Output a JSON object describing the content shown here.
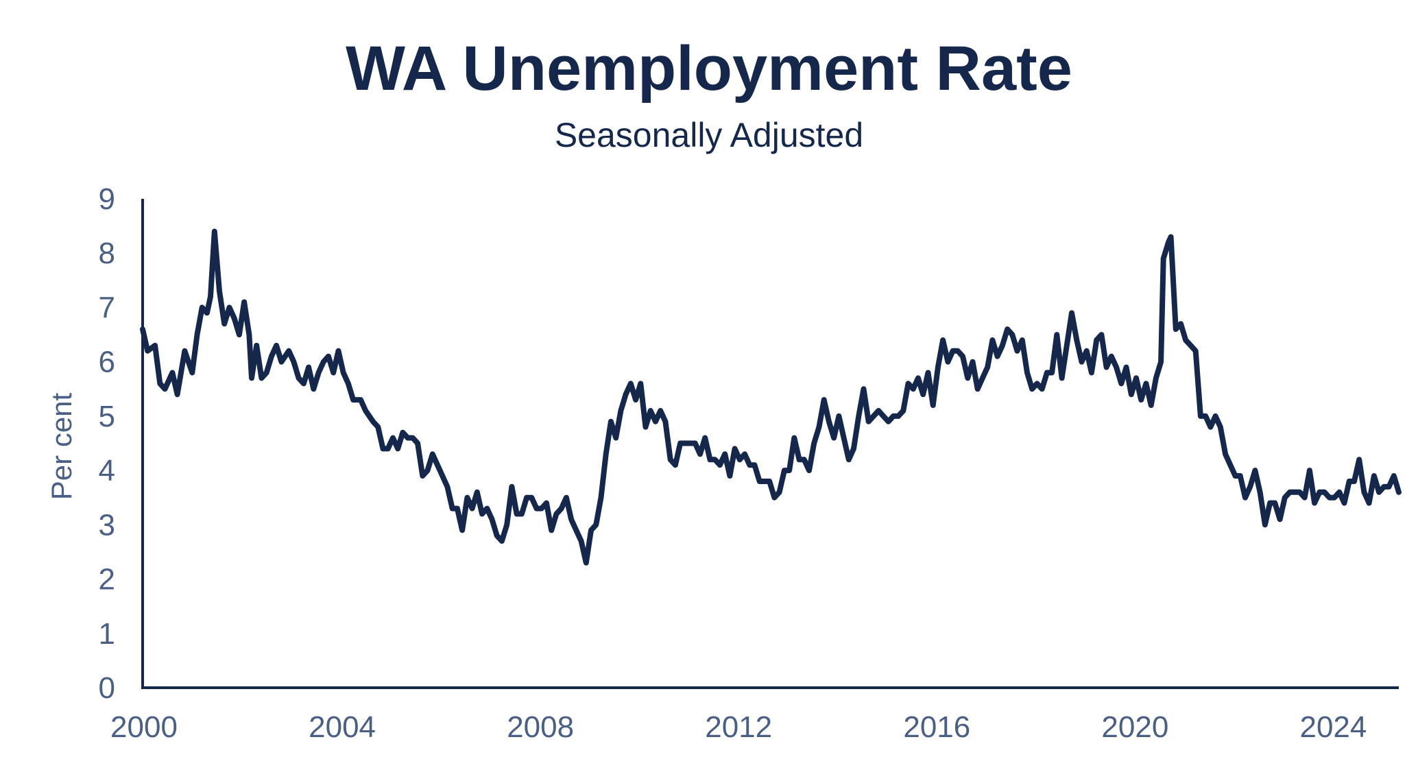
{
  "colors": {
    "line": "#15284b",
    "axis": "#15284b",
    "tick_text": "#4a5f84",
    "title": "#15284b"
  },
  "chart_data": {
    "type": "line",
    "title": "WA Unemployment Rate",
    "subtitle": "Seasonally Adjusted",
    "xlabel": "",
    "ylabel": "Per cent",
    "xlim": [
      2000,
      2025.35
    ],
    "ylim": [
      0,
      9
    ],
    "x_ticks": [
      "2000",
      "2004",
      "2008",
      "2012",
      "2016",
      "2020",
      "2024"
    ],
    "y_ticks": [
      "0",
      "1",
      "2",
      "3",
      "4",
      "5",
      "6",
      "7",
      "8",
      "9"
    ],
    "grid": false,
    "legend": "none",
    "series": [
      {
        "points": [
          [
            2000.0,
            6.6
          ],
          [
            2000.1,
            6.2
          ],
          [
            2000.25,
            6.3
          ],
          [
            2000.35,
            5.6
          ],
          [
            2000.45,
            5.5
          ],
          [
            2000.6,
            5.8
          ],
          [
            2000.7,
            5.4
          ],
          [
            2000.85,
            6.2
          ],
          [
            2001.0,
            5.8
          ],
          [
            2001.1,
            6.5
          ],
          [
            2001.2,
            7.0
          ],
          [
            2001.3,
            6.9
          ],
          [
            2001.37,
            7.2
          ],
          [
            2001.45,
            8.4
          ],
          [
            2001.55,
            7.3
          ],
          [
            2001.65,
            6.7
          ],
          [
            2001.75,
            7.0
          ],
          [
            2001.85,
            6.8
          ],
          [
            2001.95,
            6.5
          ],
          [
            2002.05,
            7.1
          ],
          [
            2002.15,
            6.5
          ],
          [
            2002.2,
            5.7
          ],
          [
            2002.3,
            6.3
          ],
          [
            2002.4,
            5.7
          ],
          [
            2002.5,
            5.8
          ],
          [
            2002.6,
            6.1
          ],
          [
            2002.7,
            6.3
          ],
          [
            2002.8,
            6.0
          ],
          [
            2002.95,
            6.2
          ],
          [
            2003.05,
            6.0
          ],
          [
            2003.15,
            5.7
          ],
          [
            2003.25,
            5.6
          ],
          [
            2003.35,
            5.9
          ],
          [
            2003.45,
            5.5
          ],
          [
            2003.55,
            5.8
          ],
          [
            2003.65,
            6.0
          ],
          [
            2003.75,
            6.1
          ],
          [
            2003.85,
            5.8
          ],
          [
            2003.95,
            6.2
          ],
          [
            2004.05,
            5.8
          ],
          [
            2004.15,
            5.6
          ],
          [
            2004.25,
            5.3
          ],
          [
            2004.4,
            5.3
          ],
          [
            2004.5,
            5.1
          ],
          [
            2004.65,
            4.9
          ],
          [
            2004.75,
            4.8
          ],
          [
            2004.85,
            4.4
          ],
          [
            2004.95,
            4.4
          ],
          [
            2005.05,
            4.6
          ],
          [
            2005.15,
            4.4
          ],
          [
            2005.25,
            4.7
          ],
          [
            2005.35,
            4.6
          ],
          [
            2005.45,
            4.6
          ],
          [
            2005.55,
            4.5
          ],
          [
            2005.65,
            3.9
          ],
          [
            2005.75,
            4.0
          ],
          [
            2005.85,
            4.3
          ],
          [
            2005.95,
            4.1
          ],
          [
            2006.05,
            3.9
          ],
          [
            2006.15,
            3.7
          ],
          [
            2006.25,
            3.3
          ],
          [
            2006.35,
            3.3
          ],
          [
            2006.45,
            2.9
          ],
          [
            2006.55,
            3.5
          ],
          [
            2006.65,
            3.3
          ],
          [
            2006.75,
            3.6
          ],
          [
            2006.85,
            3.2
          ],
          [
            2006.95,
            3.3
          ],
          [
            2007.05,
            3.1
          ],
          [
            2007.15,
            2.8
          ],
          [
            2007.25,
            2.7
          ],
          [
            2007.35,
            3.0
          ],
          [
            2007.45,
            3.7
          ],
          [
            2007.55,
            3.2
          ],
          [
            2007.65,
            3.2
          ],
          [
            2007.75,
            3.5
          ],
          [
            2007.85,
            3.5
          ],
          [
            2007.95,
            3.3
          ],
          [
            2008.05,
            3.3
          ],
          [
            2008.15,
            3.4
          ],
          [
            2008.25,
            2.9
          ],
          [
            2008.35,
            3.2
          ],
          [
            2008.45,
            3.3
          ],
          [
            2008.55,
            3.5
          ],
          [
            2008.65,
            3.1
          ],
          [
            2008.75,
            2.9
          ],
          [
            2008.85,
            2.7
          ],
          [
            2008.95,
            2.3
          ],
          [
            2009.05,
            2.9
          ],
          [
            2009.15,
            3.0
          ],
          [
            2009.25,
            3.5
          ],
          [
            2009.35,
            4.3
          ],
          [
            2009.45,
            4.9
          ],
          [
            2009.55,
            4.6
          ],
          [
            2009.65,
            5.1
          ],
          [
            2009.75,
            5.4
          ],
          [
            2009.85,
            5.6
          ],
          [
            2009.95,
            5.3
          ],
          [
            2010.05,
            5.6
          ],
          [
            2010.15,
            4.8
          ],
          [
            2010.25,
            5.1
          ],
          [
            2010.35,
            4.9
          ],
          [
            2010.45,
            5.1
          ],
          [
            2010.55,
            4.9
          ],
          [
            2010.65,
            4.2
          ],
          [
            2010.75,
            4.1
          ],
          [
            2010.85,
            4.5
          ],
          [
            2010.95,
            4.5
          ],
          [
            2011.05,
            4.5
          ],
          [
            2011.15,
            4.5
          ],
          [
            2011.25,
            4.3
          ],
          [
            2011.35,
            4.6
          ],
          [
            2011.45,
            4.2
          ],
          [
            2011.55,
            4.2
          ],
          [
            2011.65,
            4.1
          ],
          [
            2011.75,
            4.3
          ],
          [
            2011.85,
            3.9
          ],
          [
            2011.95,
            4.4
          ],
          [
            2012.05,
            4.2
          ],
          [
            2012.15,
            4.3
          ],
          [
            2012.25,
            4.1
          ],
          [
            2012.35,
            4.1
          ],
          [
            2012.45,
            3.8
          ],
          [
            2012.55,
            3.8
          ],
          [
            2012.65,
            3.8
          ],
          [
            2012.75,
            3.5
          ],
          [
            2012.85,
            3.6
          ],
          [
            2012.95,
            4.0
          ],
          [
            2013.05,
            4.0
          ],
          [
            2013.15,
            4.6
          ],
          [
            2013.25,
            4.2
          ],
          [
            2013.35,
            4.2
          ],
          [
            2013.45,
            4.0
          ],
          [
            2013.55,
            4.5
          ],
          [
            2013.65,
            4.8
          ],
          [
            2013.75,
            5.3
          ],
          [
            2013.85,
            4.9
          ],
          [
            2013.95,
            4.6
          ],
          [
            2014.05,
            5.0
          ],
          [
            2014.15,
            4.6
          ],
          [
            2014.25,
            4.2
          ],
          [
            2014.35,
            4.4
          ],
          [
            2014.45,
            5.0
          ],
          [
            2014.55,
            5.5
          ],
          [
            2014.65,
            4.9
          ],
          [
            2014.75,
            5.0
          ],
          [
            2014.85,
            5.1
          ],
          [
            2014.95,
            5.0
          ],
          [
            2015.05,
            4.9
          ],
          [
            2015.15,
            5.0
          ],
          [
            2015.25,
            5.0
          ],
          [
            2015.35,
            5.1
          ],
          [
            2015.45,
            5.6
          ],
          [
            2015.55,
            5.5
          ],
          [
            2015.65,
            5.7
          ],
          [
            2015.75,
            5.4
          ],
          [
            2015.85,
            5.8
          ],
          [
            2015.95,
            5.2
          ],
          [
            2016.05,
            5.9
          ],
          [
            2016.15,
            6.4
          ],
          [
            2016.25,
            6.0
          ],
          [
            2016.35,
            6.2
          ],
          [
            2016.45,
            6.2
          ],
          [
            2016.55,
            6.1
          ],
          [
            2016.65,
            5.7
          ],
          [
            2016.75,
            6.0
          ],
          [
            2016.85,
            5.5
          ],
          [
            2016.95,
            5.7
          ],
          [
            2017.05,
            5.9
          ],
          [
            2017.15,
            6.4
          ],
          [
            2017.25,
            6.1
          ],
          [
            2017.35,
            6.3
          ],
          [
            2017.45,
            6.6
          ],
          [
            2017.55,
            6.5
          ],
          [
            2017.65,
            6.2
          ],
          [
            2017.75,
            6.4
          ],
          [
            2017.85,
            5.8
          ],
          [
            2017.95,
            5.5
          ],
          [
            2018.05,
            5.6
          ],
          [
            2018.15,
            5.5
          ],
          [
            2018.25,
            5.8
          ],
          [
            2018.35,
            5.8
          ],
          [
            2018.45,
            6.5
          ],
          [
            2018.55,
            5.7
          ],
          [
            2018.65,
            6.3
          ],
          [
            2018.75,
            6.9
          ],
          [
            2018.85,
            6.4
          ],
          [
            2018.95,
            6.0
          ],
          [
            2019.05,
            6.2
          ],
          [
            2019.15,
            5.8
          ],
          [
            2019.25,
            6.4
          ],
          [
            2019.35,
            6.5
          ],
          [
            2019.45,
            5.9
          ],
          [
            2019.55,
            6.1
          ],
          [
            2019.65,
            5.9
          ],
          [
            2019.75,
            5.6
          ],
          [
            2019.85,
            5.9
          ],
          [
            2019.95,
            5.4
          ],
          [
            2020.05,
            5.7
          ],
          [
            2020.15,
            5.3
          ],
          [
            2020.25,
            5.6
          ],
          [
            2020.35,
            5.2
          ],
          [
            2020.45,
            5.7
          ],
          [
            2020.55,
            6.0
          ],
          [
            2020.6,
            7.9
          ],
          [
            2020.7,
            8.2
          ],
          [
            2020.75,
            8.3
          ],
          [
            2020.85,
            6.6
          ],
          [
            2020.95,
            6.7
          ],
          [
            2021.05,
            6.4
          ],
          [
            2021.15,
            6.3
          ],
          [
            2021.25,
            6.2
          ],
          [
            2021.35,
            5.0
          ],
          [
            2021.45,
            5.0
          ],
          [
            2021.55,
            4.8
          ],
          [
            2021.65,
            5.0
          ],
          [
            2021.75,
            4.8
          ],
          [
            2021.85,
            4.3
          ],
          [
            2021.95,
            4.1
          ],
          [
            2022.05,
            3.9
          ],
          [
            2022.15,
            3.9
          ],
          [
            2022.25,
            3.5
          ],
          [
            2022.35,
            3.7
          ],
          [
            2022.45,
            4.0
          ],
          [
            2022.55,
            3.6
          ],
          [
            2022.65,
            3.0
          ],
          [
            2022.75,
            3.4
          ],
          [
            2022.85,
            3.4
          ],
          [
            2022.95,
            3.1
          ],
          [
            2023.05,
            3.5
          ],
          [
            2023.15,
            3.6
          ],
          [
            2023.25,
            3.6
          ],
          [
            2023.35,
            3.6
          ],
          [
            2023.45,
            3.5
          ],
          [
            2023.55,
            4.0
          ],
          [
            2023.65,
            3.4
          ],
          [
            2023.75,
            3.6
          ],
          [
            2023.85,
            3.6
          ],
          [
            2023.95,
            3.5
          ],
          [
            2024.05,
            3.5
          ],
          [
            2024.15,
            3.6
          ],
          [
            2024.25,
            3.4
          ],
          [
            2024.35,
            3.8
          ],
          [
            2024.45,
            3.8
          ],
          [
            2024.55,
            4.2
          ],
          [
            2024.65,
            3.6
          ],
          [
            2024.75,
            3.4
          ],
          [
            2024.85,
            3.9
          ],
          [
            2024.95,
            3.6
          ],
          [
            2025.05,
            3.7
          ],
          [
            2025.15,
            3.7
          ],
          [
            2025.25,
            3.9
          ],
          [
            2025.35,
            3.6
          ]
        ]
      }
    ]
  }
}
